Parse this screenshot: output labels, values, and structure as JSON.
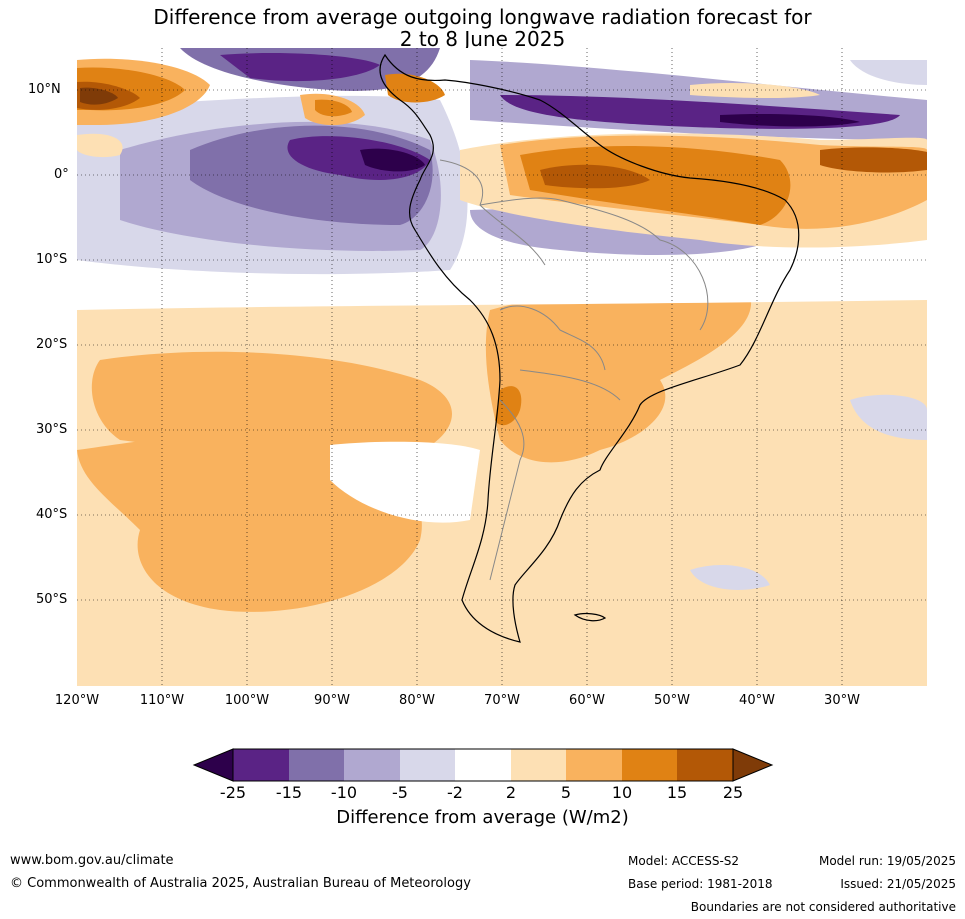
{
  "title": {
    "line1": "Difference from average outgoing longwave radiation forecast for",
    "line2": "2 to 8 June 2025"
  },
  "map": {
    "lat_labels": [
      "10°N",
      "0°",
      "10°S",
      "20°S",
      "30°S",
      "40°S",
      "50°S"
    ],
    "lon_labels": [
      "120°W",
      "110°W",
      "100°W",
      "90°W",
      "80°W",
      "70°W",
      "60°W",
      "50°W",
      "40°W",
      "30°W"
    ]
  },
  "colorbar": {
    "ticks": [
      "-25",
      "-15",
      "-10",
      "-5",
      "-2",
      "2",
      "5",
      "10",
      "15",
      "25"
    ],
    "colors": [
      "#5a2385",
      "#8070aa",
      "#b0a8d0",
      "#d8d8ea",
      "#ffffff",
      "#fde0b4",
      "#f9b25e",
      "#e08214",
      "#b35806"
    ],
    "under_color": "#2d004b",
    "over_color": "#7f3b08",
    "title": "Difference from average (W/m2)"
  },
  "footer": {
    "website": "www.bom.gov.au/climate",
    "copyright": "© Commonwealth of Australia 2025, Australian Bureau of Meteorology",
    "model": "Model: ACCESS-S2",
    "base_period": "Base period: 1981-2018",
    "model_run": "Model run: 19/05/2025",
    "issued": "Issued: 21/05/2025",
    "disclaimer": "Boundaries are not considered authoritative"
  }
}
